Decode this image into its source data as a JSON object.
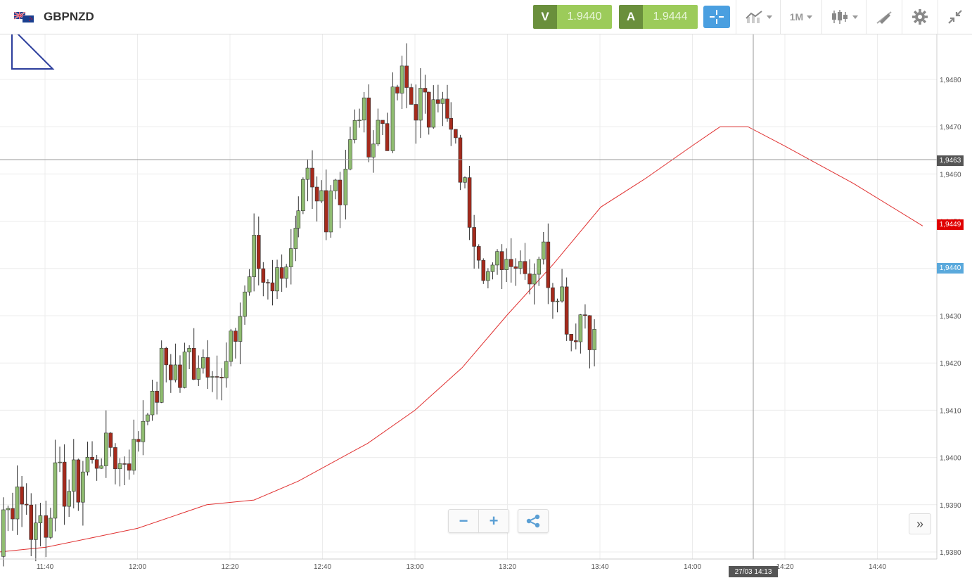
{
  "header": {
    "symbol": "GBPNZD",
    "sell_label": "V",
    "sell_price": "1.9440",
    "buy_label": "A",
    "buy_price": "1.9444",
    "timeframe": "1M"
  },
  "icons": {
    "flag": "gbp-nzd-flag-icon",
    "crosshair": "crosshair-icon",
    "indicators": "indicators-icon",
    "chart_type": "candlestick-icon",
    "drawing": "drawing-tools-icon",
    "settings": "gear-icon",
    "collapse": "collapse-icon",
    "share": "share-icon"
  },
  "colors": {
    "up_candle": "#8fbc70",
    "down_candle": "#a52a1c",
    "moving_average": "#e03030",
    "sell_button": "#6a8f3c",
    "buy_button": "#9ccb5a",
    "crosshair_button": "#4a9fe0",
    "ma_tag": "#e00000",
    "current_price_tag": "#5aa9dc",
    "crosshair_tag": "#555555"
  },
  "controls": {
    "zoom_out": "−",
    "zoom_in": "+",
    "scroll_right": "»"
  },
  "crosshair": {
    "price_label": "1,9463",
    "time_label": "27/03 14:13"
  },
  "price_tags": {
    "moving_average": "1,9449",
    "current_price": "1,9440"
  },
  "chart_data": {
    "type": "candlestick",
    "y_axis_labels": [
      "1,9480",
      "1,9470",
      "1,9460",
      "1,9450",
      "1,9440",
      "1,9430",
      "1,9420",
      "1,9410",
      "1,9400",
      "1,9390",
      "1,9380"
    ],
    "y_axis_values": [
      1.948,
      1.947,
      1.946,
      1.945,
      1.944,
      1.943,
      1.942,
      1.941,
      1.94,
      1.939,
      1.938
    ],
    "x_axis_labels": [
      "11:40",
      "12:00",
      "12:20",
      "12:40",
      "13:00",
      "13:20",
      "13:40",
      "14:00",
      "14:20",
      "14:40"
    ],
    "ylim": [
      1.9379,
      1.949
    ],
    "grid": true,
    "moving_average": [
      [
        11.33,
        1.9379
      ],
      [
        11.67,
        1.9381
      ],
      [
        12.0,
        1.9385
      ],
      [
        12.25,
        1.939
      ],
      [
        12.42,
        1.9391
      ],
      [
        12.58,
        1.9395
      ],
      [
        12.83,
        1.9403
      ],
      [
        13.0,
        1.941
      ],
      [
        13.17,
        1.9419
      ],
      [
        13.33,
        1.943
      ],
      [
        13.5,
        1.9441
      ],
      [
        13.67,
        1.9453
      ],
      [
        13.83,
        1.9459
      ],
      [
        14.0,
        1.9466
      ],
      [
        14.1,
        1.947
      ],
      [
        14.2,
        1.947
      ],
      [
        14.33,
        1.9466
      ],
      [
        14.58,
        1.9458
      ],
      [
        14.83,
        1.9449
      ]
    ],
    "candle_segments": [
      {
        "start": 11.33,
        "end": 11.5,
        "values": [
          1.9398,
          1.9392,
          1.9386,
          1.938,
          1.9381,
          1.9383,
          1.9379,
          1.938
        ]
      },
      {
        "start": 11.5,
        "end": 11.67,
        "values": [
          1.9381,
          1.9387,
          1.9388,
          1.9392,
          1.9395,
          1.939,
          1.9386,
          1.9385,
          1.9388,
          1.9386
        ]
      },
      {
        "start": 11.67,
        "end": 11.92,
        "values": [
          1.9386,
          1.9392,
          1.9396,
          1.9394,
          1.9392,
          1.9396,
          1.9393,
          1.9398,
          1.94,
          1.9397,
          1.9402,
          1.94,
          1.9403,
          1.94
        ]
      },
      {
        "start": 11.92,
        "end": 12.17,
        "values": [
          1.94,
          1.9398,
          1.9401,
          1.94,
          1.9403,
          1.9408,
          1.9413,
          1.941,
          1.9415,
          1.9422,
          1.9418,
          1.942,
          1.9415,
          1.942
        ]
      },
      {
        "start": 12.17,
        "end": 12.42,
        "values": [
          1.942,
          1.9422,
          1.9419,
          1.9423,
          1.942,
          1.9422,
          1.9418,
          1.9415,
          1.942,
          1.9424,
          1.9428,
          1.9434,
          1.9438,
          1.9444
        ]
      },
      {
        "start": 12.42,
        "end": 12.58,
        "values": [
          1.9444,
          1.944,
          1.9437,
          1.944,
          1.9436,
          1.944,
          1.9443,
          1.9441,
          1.9445,
          1.9448
        ]
      },
      {
        "start": 12.58,
        "end": 12.75,
        "values": [
          1.9448,
          1.9455,
          1.9458,
          1.9455,
          1.9453,
          1.9456,
          1.9452,
          1.9458,
          1.946,
          1.9456,
          1.9462
        ]
      },
      {
        "start": 12.75,
        "end": 12.92,
        "values": [
          1.9462,
          1.9466,
          1.947,
          1.9475,
          1.947,
          1.9466,
          1.947,
          1.9472,
          1.9468,
          1.9474
        ]
      },
      {
        "start": 12.92,
        "end": 13.05,
        "values": [
          1.9474,
          1.9478,
          1.948,
          1.9476,
          1.9474,
          1.9476,
          1.9474,
          1.9472
        ]
      },
      {
        "start": 13.05,
        "end": 13.13,
        "values": [
          1.9472,
          1.948,
          1.9478,
          1.9474,
          1.947,
          1.9468
        ]
      },
      {
        "start": 13.13,
        "end": 13.33,
        "values": [
          1.9468,
          1.9464,
          1.946,
          1.9455,
          1.945,
          1.9448,
          1.9443,
          1.944,
          1.9437,
          1.944,
          1.9443,
          1.9442
        ]
      },
      {
        "start": 13.33,
        "end": 13.58,
        "values": [
          1.9442,
          1.9445,
          1.944,
          1.9444,
          1.9438,
          1.9442,
          1.9445,
          1.944,
          1.9436,
          1.9438,
          1.9433,
          1.9425,
          1.9428
        ]
      },
      {
        "start": 13.58,
        "end": 13.67,
        "values": [
          1.9428,
          1.9432,
          1.9426,
          1.9423
        ]
      }
    ]
  }
}
